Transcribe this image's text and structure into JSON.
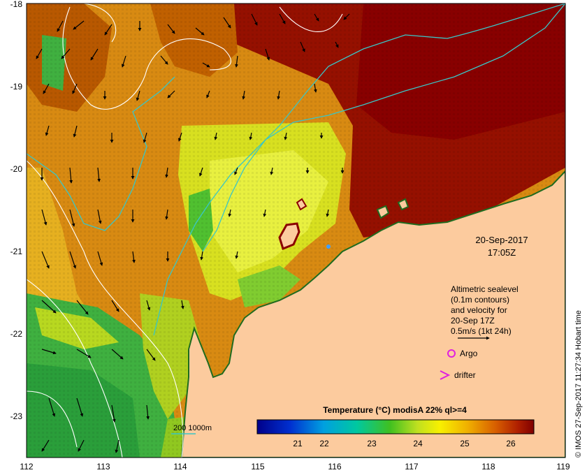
{
  "map": {
    "date_label": "20-Sep-2017",
    "time_label": "17:05Z",
    "annotation": {
      "line1": "Altimetric sealevel",
      "line2": "(0.1m contours)",
      "line3": "and velocity for",
      "line4": "20-Sep 17Z",
      "line5": "0.5m/s (1kt 24h)"
    },
    "legend": {
      "argo_label": "Argo",
      "drifter_label": "drifter",
      "isobath_label": "200  1000m"
    },
    "colorbar": {
      "title": "Temperature (°C) modisA 22% ql>=4",
      "ticks": [
        "21",
        "22",
        "23",
        "24",
        "25",
        "26"
      ]
    },
    "credit": "© IMOS 27-Sep-2017 11:27:34 Hobart time",
    "axes": {
      "x_ticks": [
        "112",
        "113",
        "114",
        "115",
        "116",
        "117",
        "118",
        "119"
      ],
      "y_ticks": [
        "-18",
        "-19",
        "-20",
        "-21",
        "-22",
        "-23"
      ]
    },
    "colors": {
      "land": "#fccb9e",
      "coast": "#1f6b1f",
      "isobath": "#39c6c6",
      "contour": "#ffffff",
      "argo": "#e020e0",
      "drifter": "#e020e0",
      "sst_warm": "#8e0000",
      "sst_mid": "#e0a000",
      "sst_cool": "#30b030"
    }
  }
}
